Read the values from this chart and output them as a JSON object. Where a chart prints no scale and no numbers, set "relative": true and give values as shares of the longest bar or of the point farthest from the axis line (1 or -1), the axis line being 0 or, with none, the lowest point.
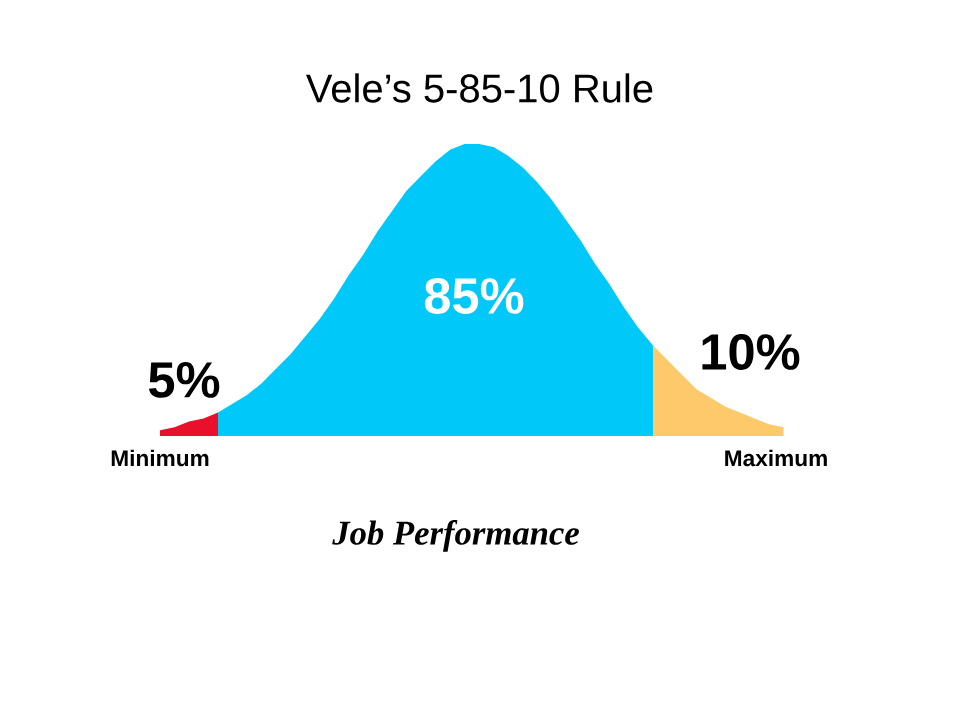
{
  "chart_data": {
    "type": "area",
    "title": "Vele’s 5-85-10 Rule",
    "xlabel": "Job Performance",
    "relative": true,
    "annotations": [
      "5%",
      "85%",
      "10%",
      "Minimum",
      "Maximum"
    ],
    "categories": [
      null,
      null,
      null,
      null,
      null,
      null,
      null,
      null,
      null,
      null,
      null,
      null,
      null,
      null,
      null,
      null,
      null,
      null,
      null,
      null,
      null,
      null,
      null,
      null,
      null,
      null,
      null,
      null,
      null,
      null,
      null,
      null,
      null,
      null,
      null,
      null,
      null,
      null,
      null,
      null,
      null,
      null,
      null,
      null
    ],
    "series": [
      {
        "color": "#e8102a",
        "values": [
          0.02,
          0.03,
          0.05,
          0.06,
          0.08,
          null,
          null,
          null,
          null,
          null,
          null,
          null,
          null,
          null,
          null,
          null,
          null,
          null,
          null,
          null,
          null,
          null,
          null,
          null,
          null,
          null,
          null,
          null,
          null,
          null,
          null,
          null,
          null,
          null,
          null,
          null,
          null,
          null,
          null,
          null,
          null,
          null,
          null,
          null
        ]
      },
      {
        "color": "#00c8f8",
        "values": [
          null,
          null,
          null,
          null,
          0.08,
          0.11,
          0.14,
          0.18,
          0.23,
          0.28,
          0.34,
          0.4,
          0.47,
          0.55,
          0.62,
          0.7,
          0.77,
          0.84,
          0.89,
          0.94,
          0.98,
          1.0,
          1.0,
          0.99,
          0.96,
          0.92,
          0.87,
          0.81,
          0.74,
          0.67,
          0.59,
          0.52,
          0.44,
          0.37,
          0.31,
          null,
          null,
          null,
          null,
          null,
          null,
          null,
          null,
          null
        ]
      },
      {
        "color": "#fdc96a",
        "values": [
          null,
          null,
          null,
          null,
          null,
          null,
          null,
          null,
          null,
          null,
          null,
          null,
          null,
          null,
          null,
          null,
          null,
          null,
          null,
          null,
          null,
          null,
          null,
          null,
          null,
          null,
          null,
          null,
          null,
          null,
          null,
          null,
          null,
          null,
          0.31,
          0.26,
          0.21,
          0.16,
          0.13,
          0.1,
          0.08,
          0.06,
          0.04,
          0.03
        ]
      }
    ]
  }
}
